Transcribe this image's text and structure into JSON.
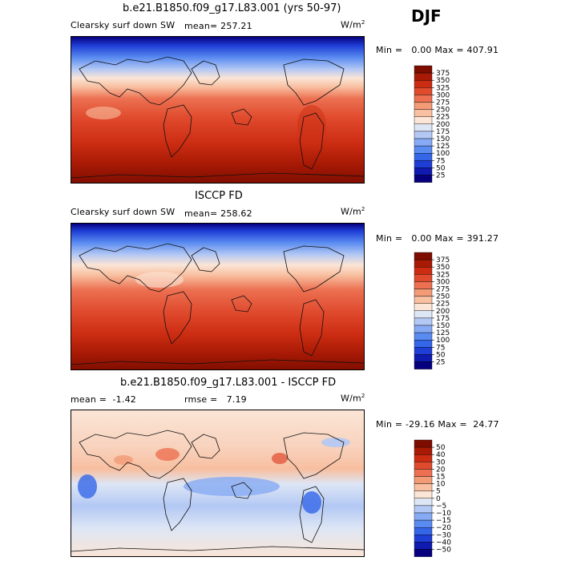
{
  "season": "DJF",
  "panels": [
    {
      "title": "b.e21.B1850.f09_g17.L83.001 (yrs 50-97)",
      "left_label": "Clearsky surf down SW",
      "stat_label": "mean=",
      "stat_value": "257.21",
      "units": "W/m",
      "units_sup": "2",
      "min_label": "Min =",
      "min_value": "0.00",
      "max_label": "Max =",
      "max_value": "407.91",
      "scale": "abs"
    },
    {
      "title": "ISCCP FD",
      "left_label": "Clearsky surf down SW",
      "stat_label": "mean=",
      "stat_value": "258.62",
      "units": "W/m",
      "units_sup": "2",
      "min_label": "Min =",
      "min_value": "0.00",
      "max_label": "Max =",
      "max_value": "391.27",
      "scale": "abs"
    },
    {
      "title": "b.e21.B1850.f09_g17.L83.001 - ISCCP FD",
      "left_label": "mean =",
      "left_value": "-1.42",
      "stat_label": "rmse =",
      "stat_value": "7.19",
      "units": "W/m",
      "units_sup": "2",
      "min_label": "Min =",
      "min_value": "-29.16",
      "max_label": "Max =",
      "max_value": "24.77",
      "scale": "diff"
    }
  ],
  "chart_data": [
    {
      "type": "heatmap",
      "title": "b.e21.B1850.f09_g17.L83.001 (yrs 50-97)",
      "variable": "Clearsky surf down SW",
      "units": "W/m2",
      "mean": 257.21,
      "min": 0.0,
      "max": 407.91,
      "colorbar_levels": [
        25,
        50,
        75,
        100,
        125,
        150,
        175,
        200,
        225,
        250,
        275,
        300,
        325,
        350,
        375
      ],
      "colorbar_colors": [
        "#06007e",
        "#0f1ab0",
        "#1f3ed6",
        "#3566e8",
        "#5a8bf0",
        "#86aaf3",
        "#b3c8f4",
        "#dde6f5",
        "#fbe5d6",
        "#f8bfa0",
        "#f39a76",
        "#ec7051",
        "#e04a2d",
        "#cc2d12",
        "#a81a05",
        "#7e0d00"
      ]
    },
    {
      "type": "heatmap",
      "title": "ISCCP FD",
      "variable": "Clearsky surf down SW",
      "units": "W/m2",
      "mean": 258.62,
      "min": 0.0,
      "max": 391.27,
      "colorbar_levels": [
        25,
        50,
        75,
        100,
        125,
        150,
        175,
        200,
        225,
        250,
        275,
        300,
        325,
        350,
        375
      ],
      "colorbar_colors": [
        "#06007e",
        "#0f1ab0",
        "#1f3ed6",
        "#3566e8",
        "#5a8bf0",
        "#86aaf3",
        "#b3c8f4",
        "#dde6f5",
        "#fbe5d6",
        "#f8bfa0",
        "#f39a76",
        "#ec7051",
        "#e04a2d",
        "#cc2d12",
        "#a81a05",
        "#7e0d00"
      ]
    },
    {
      "type": "heatmap",
      "title": "b.e21.B1850.f09_g17.L83.001 - ISCCP FD",
      "mean": -1.42,
      "rmse": 7.19,
      "units": "W/m2",
      "min": -29.16,
      "max": 24.77,
      "colorbar_levels": [
        -50,
        -40,
        -30,
        -20,
        -15,
        -10,
        -5,
        0,
        5,
        10,
        15,
        20,
        30,
        40,
        50
      ],
      "colorbar_colors": [
        "#06007e",
        "#0f1ab0",
        "#1f3ed6",
        "#3566e8",
        "#5a8bf0",
        "#86aaf3",
        "#b3c8f4",
        "#dde6f5",
        "#fbe5d6",
        "#f8bfa0",
        "#f39a76",
        "#ec7051",
        "#e04a2d",
        "#cc2d12",
        "#a81a05",
        "#7e0d00"
      ]
    }
  ]
}
